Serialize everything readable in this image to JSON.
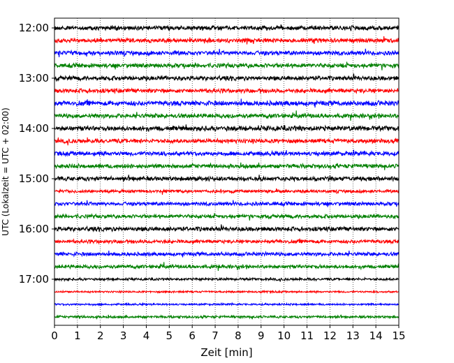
{
  "chart_data": {
    "type": "line",
    "subtype": "seismogram-helicorder",
    "xlabel": "Zeit  [min]",
    "ylabel": "UTC (Lokalzeit = UTC + 02:00)",
    "xlim": [
      0,
      15
    ],
    "x_ticks": [
      0,
      1,
      2,
      3,
      4,
      5,
      6,
      7,
      8,
      9,
      10,
      11,
      12,
      13,
      14,
      15
    ],
    "x_tick_labels": [
      "0",
      "1",
      "2",
      "3",
      "4",
      "5",
      "6",
      "7",
      "8",
      "9",
      "10",
      "11",
      "12",
      "13",
      "14",
      "15"
    ],
    "y_tick_labels": [
      "12:00",
      "13:00",
      "14:00",
      "15:00",
      "16:00",
      "17:00"
    ],
    "grid": {
      "x": true,
      "style": "dotted"
    },
    "trace_colors": [
      "#000000",
      "#ff0000",
      "#0000ff",
      "#008000"
    ],
    "traces": [
      {
        "start": "12:00",
        "color": "#000000",
        "amplitude": 0.35
      },
      {
        "start": "12:15",
        "color": "#ff0000",
        "amplitude": 0.35
      },
      {
        "start": "12:30",
        "color": "#0000ff",
        "amplitude": 0.35
      },
      {
        "start": "12:45",
        "color": "#008000",
        "amplitude": 0.35
      },
      {
        "start": "13:00",
        "color": "#000000",
        "amplitude": 0.35
      },
      {
        "start": "13:15",
        "color": "#ff0000",
        "amplitude": 0.35
      },
      {
        "start": "13:30",
        "color": "#0000ff",
        "amplitude": 0.4
      },
      {
        "start": "13:45",
        "color": "#008000",
        "amplitude": 0.35
      },
      {
        "start": "14:00",
        "color": "#000000",
        "amplitude": 0.4
      },
      {
        "start": "14:15",
        "color": "#ff0000",
        "amplitude": 0.35
      },
      {
        "start": "14:30",
        "color": "#0000ff",
        "amplitude": 0.35
      },
      {
        "start": "14:45",
        "color": "#008000",
        "amplitude": 0.35
      },
      {
        "start": "15:00",
        "color": "#000000",
        "amplitude": 0.35
      },
      {
        "start": "15:15",
        "color": "#ff0000",
        "amplitude": 0.25
      },
      {
        "start": "15:30",
        "color": "#0000ff",
        "amplitude": 0.3
      },
      {
        "start": "15:45",
        "color": "#008000",
        "amplitude": 0.3
      },
      {
        "start": "16:00",
        "color": "#000000",
        "amplitude": 0.35
      },
      {
        "start": "16:15",
        "color": "#ff0000",
        "amplitude": 0.3
      },
      {
        "start": "16:30",
        "color": "#0000ff",
        "amplitude": 0.3
      },
      {
        "start": "16:45",
        "color": "#008000",
        "amplitude": 0.3
      },
      {
        "start": "17:00",
        "color": "#000000",
        "amplitude": 0.2
      },
      {
        "start": "17:15",
        "color": "#ff0000",
        "amplitude": 0.15
      },
      {
        "start": "17:30",
        "color": "#0000ff",
        "amplitude": 0.15
      },
      {
        "start": "17:45",
        "color": "#008000",
        "amplitude": 0.2
      }
    ]
  }
}
